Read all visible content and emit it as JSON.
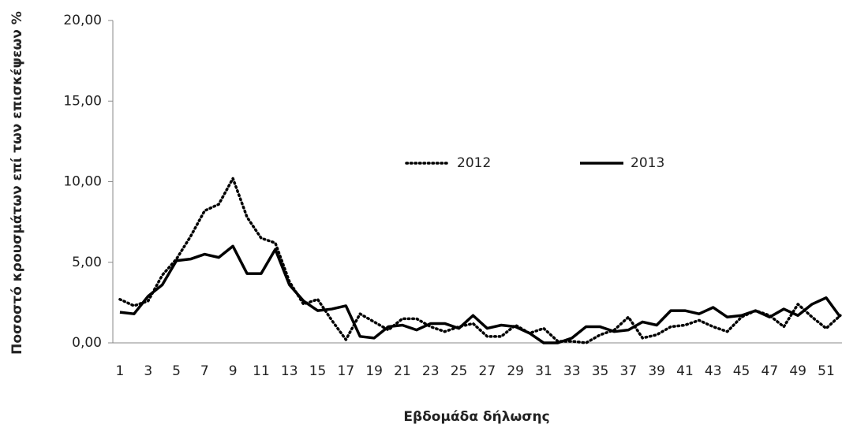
{
  "chart_data": {
    "type": "line",
    "y_axis_label": "Ποσοστό κρουσμάτων επί των επισκέψεων %",
    "x_axis_label": "Εβδομάδα δήλωσης",
    "categories": [
      "1",
      null,
      "3",
      null,
      "5",
      null,
      "7",
      null,
      "9",
      null,
      "11",
      null,
      "13",
      null,
      "15",
      null,
      "17",
      null,
      "19",
      null,
      "21",
      null,
      "23",
      null,
      "25",
      null,
      "27",
      null,
      "29",
      null,
      "31",
      null,
      "33",
      null,
      "35",
      null,
      "37",
      null,
      "39",
      null,
      "41",
      null,
      "43",
      null,
      "45",
      null,
      "47",
      null,
      "49",
      null,
      "51",
      null
    ],
    "series": [
      {
        "name": "2012",
        "color": "#000000",
        "line_style": "dotted",
        "values": [
          2.7,
          2.3,
          2.6,
          4.2,
          5.2,
          6.6,
          8.2,
          8.6,
          10.2,
          7.8,
          6.5,
          6.2,
          3.8,
          2.4,
          2.7,
          1.4,
          0.2,
          1.8,
          1.3,
          0.8,
          1.5,
          1.5,
          1.0,
          0.7,
          1.0,
          1.2,
          0.4,
          0.4,
          1.1,
          0.6,
          0.9,
          0.1,
          0.1,
          0.0,
          0.5,
          0.8,
          1.6,
          0.3,
          0.5,
          1.0,
          1.1,
          1.4,
          1.0,
          0.7,
          1.6,
          2.0,
          1.7,
          1.0,
          2.4,
          1.6,
          0.9,
          1.7
        ]
      },
      {
        "name": "2013",
        "color": "#000000",
        "line_style": "solid",
        "values": [
          1.9,
          1.8,
          2.9,
          3.6,
          5.1,
          5.2,
          5.5,
          5.3,
          6.0,
          4.3,
          4.3,
          5.8,
          3.6,
          2.6,
          2.0,
          2.1,
          2.3,
          0.4,
          0.3,
          1.0,
          1.1,
          0.8,
          1.2,
          1.2,
          0.9,
          1.7,
          0.9,
          1.1,
          1.0,
          0.6,
          0.0,
          0.0,
          0.3,
          1.0,
          1.0,
          0.7,
          0.8,
          1.3,
          1.1,
          2.0,
          2.0,
          1.8,
          2.2,
          1.6,
          1.7,
          2.0,
          1.6,
          2.1,
          1.7,
          2.4,
          2.8,
          1.6
        ]
      }
    ],
    "ylim": [
      0,
      20
    ],
    "yticks": [
      {
        "value": 0,
        "label": "0,00"
      },
      {
        "value": 5,
        "label": "5,00"
      },
      {
        "value": 10,
        "label": "10,00"
      },
      {
        "value": 15,
        "label": "15,00"
      },
      {
        "value": 20,
        "label": "20,00"
      }
    ],
    "grid": false,
    "legend": "center"
  }
}
